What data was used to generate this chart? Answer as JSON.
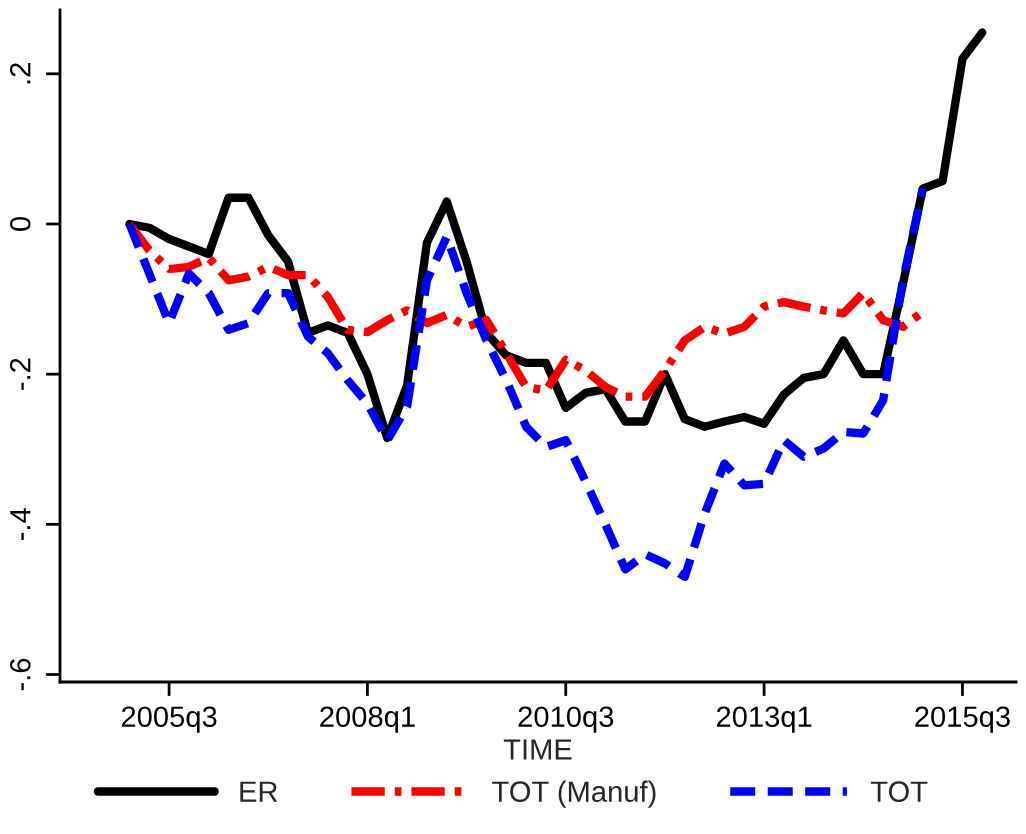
{
  "chart_data": {
    "type": "line",
    "xlabel": "TIME",
    "categories": [
      null,
      null,
      "2005q3",
      null,
      null,
      null,
      null,
      null,
      null,
      null,
      null,
      null,
      "2008q1",
      null,
      null,
      null,
      null,
      null,
      null,
      null,
      null,
      null,
      "2010q3",
      null,
      null,
      null,
      null,
      null,
      null,
      null,
      null,
      null,
      "2013q1",
      null,
      null,
      null,
      null,
      null,
      null,
      null,
      null,
      null,
      "2015q3",
      null
    ],
    "series": [
      {
        "name": "ER",
        "color": "#000000",
        "line_style": "solid",
        "values": [
          0,
          -0.005,
          -0.02,
          -0.03,
          -0.04,
          0.035,
          0.035,
          -0.015,
          -0.05,
          -0.145,
          -0.135,
          -0.145,
          -0.2,
          -0.285,
          -0.215,
          -0.025,
          0.03,
          -0.05,
          -0.145,
          -0.175,
          -0.185,
          -0.185,
          -0.245,
          -0.225,
          -0.22,
          -0.263,
          -0.263,
          -0.2,
          -0.26,
          -0.27,
          -0.263,
          -0.257,
          -0.266,
          -0.227,
          -0.205,
          -0.2,
          -0.155,
          -0.2,
          -0.2,
          -0.08,
          0.047,
          0.057,
          0.22,
          0.255
        ]
      },
      {
        "name": "TOT (Manuf)",
        "color": "#ff0000",
        "line_style": "dashdot",
        "values": [
          0,
          -0.035,
          -0.06,
          -0.057,
          -0.045,
          -0.075,
          -0.07,
          -0.057,
          -0.068,
          -0.068,
          -0.097,
          -0.141,
          -0.144,
          -0.128,
          -0.115,
          -0.132,
          -0.121,
          -0.137,
          -0.128,
          -0.172,
          -0.217,
          -0.222,
          -0.181,
          -0.195,
          -0.217,
          -0.23,
          -0.23,
          -0.195,
          -0.155,
          -0.137,
          -0.146,
          -0.137,
          -0.11,
          -0.104,
          -0.11,
          -0.115,
          -0.119,
          -0.092,
          -0.128,
          -0.137,
          -0.117,
          null,
          null,
          null
        ]
      },
      {
        "name": "TOT",
        "color": "#0000ff",
        "line_style": "dashed",
        "values": [
          0,
          -0.066,
          -0.132,
          -0.066,
          -0.092,
          -0.141,
          -0.132,
          -0.092,
          -0.092,
          -0.15,
          -0.172,
          -0.208,
          -0.239,
          -0.288,
          -0.243,
          -0.075,
          -0.017,
          -0.092,
          -0.155,
          -0.208,
          -0.27,
          -0.297,
          -0.288,
          -0.343,
          -0.4,
          -0.46,
          -0.44,
          -0.452,
          -0.47,
          -0.386,
          -0.319,
          -0.348,
          -0.346,
          -0.288,
          -0.31,
          -0.299,
          -0.277,
          -0.279,
          -0.235,
          -0.075,
          0.047,
          null,
          null,
          null
        ]
      }
    ],
    "ylim": [
      -0.61,
      0.285
    ],
    "yticks": [
      {
        "value": -0.6,
        "label": "-.6"
      },
      {
        "value": -0.4,
        "label": "-.4"
      },
      {
        "value": -0.2,
        "label": "-.2"
      },
      {
        "value": 0,
        "label": "0"
      },
      {
        "value": 0.2,
        "label": ".2"
      }
    ],
    "grid": false,
    "legend": "bottom"
  }
}
